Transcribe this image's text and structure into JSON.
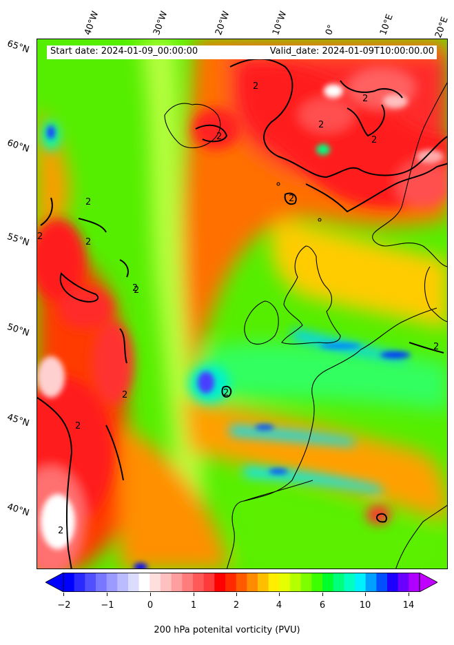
{
  "header": {
    "start_date": "Start date: 2024-01-09_00:00:00",
    "valid_date": "Valid_date: 2024-01-09T10:00:00.00"
  },
  "longitude_labels": [
    "40°W",
    "30°W",
    "20°W",
    "10°W",
    "0°",
    "10°E",
    "20°E"
  ],
  "latitude_labels": [
    "65°N",
    "60°N",
    "55°N",
    "50°N",
    "45°N",
    "40°N"
  ],
  "contour_label": "2",
  "colorbar": {
    "label": "200 hPa potenital vorticity (PVU)",
    "ticks": [
      "−2",
      "−1",
      "0",
      "1",
      "2",
      "4",
      "6",
      "10",
      "14"
    ],
    "colors": [
      "#0000ff",
      "#2a2aff",
      "#5050ff",
      "#7777ff",
      "#9a9aff",
      "#bbbbff",
      "#dcdcff",
      "#ffffff",
      "#ffdede",
      "#ffc0c0",
      "#ff9e9e",
      "#ff7c7c",
      "#ff5a5a",
      "#ff3a3a",
      "#ff0000",
      "#ff2a00",
      "#ff5a00",
      "#ff8c00",
      "#ffbe00",
      "#ffee00",
      "#e6ff00",
      "#b4ff00",
      "#7dff00",
      "#3cff00",
      "#00ff2a",
      "#00ff7a",
      "#00ffc0",
      "#00f0ff",
      "#00a0ff",
      "#0050ff",
      "#1e00ff",
      "#6a00ff",
      "#b000ff"
    ],
    "under_color": "#0000ff",
    "over_color": "#c000ff"
  }
}
